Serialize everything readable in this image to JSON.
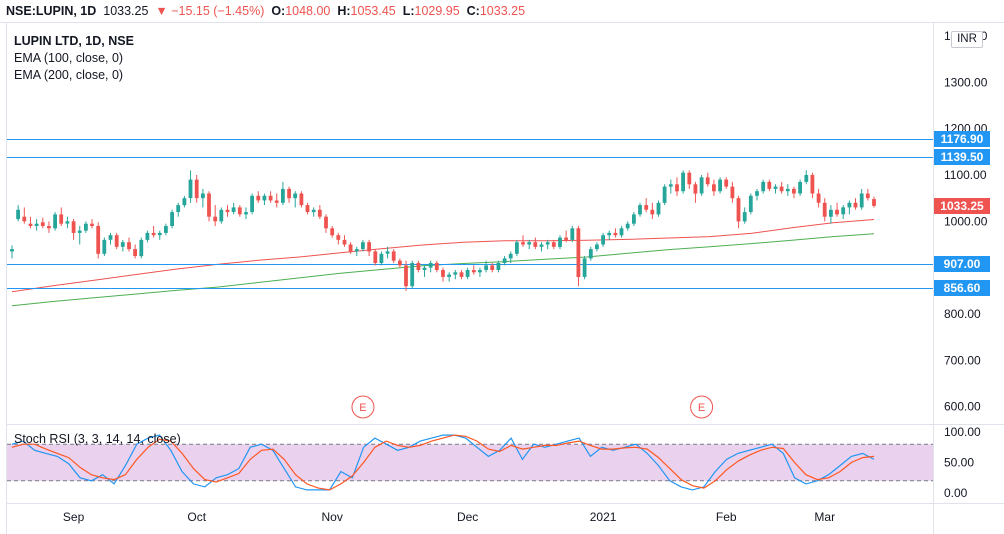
{
  "header": {
    "symbol": "NSE:LUPIN, 1D",
    "last": "1033.25",
    "change": "▼ −15.15 (−1.45%)",
    "open_label": "O:",
    "open": "1048.00",
    "high_label": "H:",
    "high": "1053.45",
    "low_label": "L:",
    "low": "1029.95",
    "close_label": "C:",
    "close": "1033.25"
  },
  "legend": {
    "title": "LUPIN LTD, 1D, NSE",
    "ema100": "EMA (100, close, 0)",
    "ema200": "EMA (200, close, 0)"
  },
  "currency_button": "INR",
  "colors": {
    "up": "#26a69a",
    "down": "#ef5350",
    "ema100": "#ef5350",
    "ema200": "#4caf50",
    "hline": "#2196f3",
    "stoch_k": "#2196f3",
    "stoch_d": "#ff5722",
    "stoch_band": "#e1bee7"
  },
  "chart_data": {
    "type": "candlestick",
    "price_axis": {
      "ticks": [
        "1400.00",
        "1300.00",
        "1200.00",
        "1100.00",
        "1000.00",
        "800.00",
        "700.00",
        "600.00"
      ],
      "ylim": [
        560,
        1405
      ]
    },
    "time_axis": [
      "Sep",
      "Oct",
      "Nov",
      "Dec",
      "2021",
      "Feb",
      "Mar"
    ],
    "horizontal_lines": [
      {
        "value": 1176.9,
        "label": "1176.90"
      },
      {
        "value": 1139.5,
        "label": "1139.50"
      },
      {
        "value": 907.0,
        "label": "907.00"
      },
      {
        "value": 856.6,
        "label": "856.60"
      }
    ],
    "last_price_label": "1033.25",
    "ohlc": [
      [
        935,
        948,
        920,
        940
      ],
      [
        1005,
        1035,
        1000,
        1025
      ],
      [
        1010,
        1030,
        995,
        1000
      ],
      [
        995,
        1010,
        985,
        990
      ],
      [
        990,
        1005,
        980,
        995
      ],
      [
        998,
        1008,
        985,
        990
      ],
      [
        990,
        1000,
        975,
        985
      ],
      [
        985,
        1020,
        980,
        1015
      ],
      [
        1015,
        1030,
        990,
        995
      ],
      [
        995,
        1010,
        985,
        1000
      ],
      [
        1000,
        1005,
        960,
        975
      ],
      [
        975,
        990,
        950,
        980
      ],
      [
        980,
        1000,
        975,
        995
      ],
      [
        995,
        1005,
        985,
        990
      ],
      [
        990,
        998,
        920,
        930
      ],
      [
        930,
        965,
        925,
        960
      ],
      [
        960,
        975,
        950,
        970
      ],
      [
        970,
        975,
        940,
        945
      ],
      [
        945,
        960,
        935,
        955
      ],
      [
        955,
        965,
        935,
        940
      ],
      [
        940,
        950,
        920,
        925
      ],
      [
        925,
        965,
        920,
        960
      ],
      [
        960,
        980,
        955,
        975
      ],
      [
        975,
        990,
        965,
        970
      ],
      [
        970,
        980,
        960,
        975
      ],
      [
        975,
        995,
        970,
        990
      ],
      [
        990,
        1025,
        985,
        1020
      ],
      [
        1020,
        1040,
        1010,
        1035
      ],
      [
        1035,
        1055,
        1030,
        1050
      ],
      [
        1050,
        1110,
        1040,
        1090
      ],
      [
        1090,
        1100,
        1040,
        1050
      ],
      [
        1050,
        1070,
        1030,
        1060
      ],
      [
        1060,
        1065,
        1000,
        1010
      ],
      [
        1010,
        1035,
        990,
        1000
      ],
      [
        1000,
        1030,
        995,
        1025
      ],
      [
        1025,
        1035,
        1010,
        1020
      ],
      [
        1020,
        1040,
        1015,
        1030
      ],
      [
        1030,
        1035,
        1010,
        1015
      ],
      [
        1015,
        1030,
        1005,
        1020
      ],
      [
        1020,
        1060,
        1015,
        1055
      ],
      [
        1055,
        1065,
        1040,
        1045
      ],
      [
        1045,
        1060,
        1035,
        1055
      ],
      [
        1055,
        1065,
        1040,
        1045
      ],
      [
        1045,
        1060,
        1030,
        1040
      ],
      [
        1040,
        1085,
        1035,
        1070
      ],
      [
        1070,
        1075,
        1040,
        1050
      ],
      [
        1050,
        1065,
        1030,
        1060
      ],
      [
        1060,
        1065,
        1030,
        1035
      ],
      [
        1035,
        1040,
        1015,
        1020
      ],
      [
        1020,
        1030,
        1010,
        1025
      ],
      [
        1025,
        1035,
        1005,
        1010
      ],
      [
        1010,
        1015,
        975,
        985
      ],
      [
        985,
        990,
        965,
        970
      ],
      [
        970,
        975,
        950,
        960
      ],
      [
        960,
        970,
        945,
        950
      ],
      [
        950,
        955,
        930,
        935
      ],
      [
        935,
        945,
        925,
        940
      ],
      [
        940,
        960,
        935,
        955
      ],
      [
        955,
        960,
        925,
        935
      ],
      [
        935,
        940,
        905,
        910
      ],
      [
        910,
        935,
        905,
        930
      ],
      [
        930,
        945,
        920,
        935
      ],
      [
        935,
        940,
        910,
        915
      ],
      [
        915,
        920,
        900,
        905
      ],
      [
        905,
        915,
        850,
        860
      ],
      [
        860,
        915,
        855,
        910
      ],
      [
        910,
        915,
        890,
        895
      ],
      [
        895,
        905,
        880,
        900
      ],
      [
        900,
        915,
        890,
        910
      ],
      [
        910,
        915,
        890,
        895
      ],
      [
        895,
        900,
        870,
        880
      ],
      [
        880,
        890,
        870,
        885
      ],
      [
        885,
        895,
        875,
        890
      ],
      [
        890,
        895,
        875,
        880
      ],
      [
        880,
        900,
        875,
        895
      ],
      [
        895,
        905,
        885,
        890
      ],
      [
        890,
        900,
        880,
        895
      ],
      [
        895,
        915,
        890,
        905
      ],
      [
        905,
        910,
        890,
        895
      ],
      [
        895,
        915,
        890,
        910
      ],
      [
        910,
        925,
        905,
        920
      ],
      [
        920,
        935,
        910,
        930
      ],
      [
        930,
        960,
        925,
        955
      ],
      [
        955,
        970,
        945,
        950
      ],
      [
        950,
        960,
        940,
        955
      ],
      [
        955,
        965,
        940,
        945
      ],
      [
        945,
        955,
        935,
        950
      ],
      [
        950,
        960,
        940,
        955
      ],
      [
        955,
        960,
        940,
        945
      ],
      [
        945,
        970,
        940,
        965
      ],
      [
        965,
        980,
        955,
        960
      ],
      [
        960,
        990,
        955,
        985
      ],
      [
        985,
        990,
        860,
        880
      ],
      [
        880,
        925,
        875,
        920
      ],
      [
        920,
        945,
        915,
        940
      ],
      [
        940,
        955,
        935,
        950
      ],
      [
        950,
        975,
        945,
        970
      ],
      [
        970,
        980,
        960,
        975
      ],
      [
        975,
        985,
        965,
        970
      ],
      [
        970,
        990,
        965,
        985
      ],
      [
        985,
        1000,
        980,
        995
      ],
      [
        995,
        1020,
        990,
        1015
      ],
      [
        1015,
        1040,
        1010,
        1035
      ],
      [
        1035,
        1050,
        1020,
        1025
      ],
      [
        1025,
        1040,
        1005,
        1015
      ],
      [
        1015,
        1045,
        1010,
        1040
      ],
      [
        1040,
        1080,
        1035,
        1075
      ],
      [
        1075,
        1090,
        1060,
        1080
      ],
      [
        1080,
        1095,
        1055,
        1065
      ],
      [
        1065,
        1110,
        1060,
        1105
      ],
      [
        1105,
        1110,
        1070,
        1080
      ],
      [
        1080,
        1085,
        1040,
        1060
      ],
      [
        1060,
        1100,
        1055,
        1095
      ],
      [
        1095,
        1105,
        1075,
        1080
      ],
      [
        1080,
        1090,
        1055,
        1065
      ],
      [
        1065,
        1095,
        1060,
        1090
      ],
      [
        1090,
        1095,
        1070,
        1075
      ],
      [
        1075,
        1085,
        1040,
        1050
      ],
      [
        1050,
        1055,
        985,
        1000
      ],
      [
        1000,
        1030,
        995,
        1020
      ],
      [
        1020,
        1060,
        1015,
        1055
      ],
      [
        1055,
        1070,
        1045,
        1065
      ],
      [
        1065,
        1090,
        1060,
        1085
      ],
      [
        1085,
        1090,
        1065,
        1070
      ],
      [
        1070,
        1080,
        1060,
        1075
      ],
      [
        1075,
        1085,
        1060,
        1065
      ],
      [
        1065,
        1080,
        1055,
        1070
      ],
      [
        1070,
        1075,
        1050,
        1060
      ],
      [
        1060,
        1090,
        1055,
        1085
      ],
      [
        1085,
        1110,
        1080,
        1100
      ],
      [
        1100,
        1105,
        1050,
        1060
      ],
      [
        1060,
        1070,
        1030,
        1040
      ],
      [
        1040,
        1050,
        1000,
        1010
      ],
      [
        1010,
        1035,
        995,
        1025
      ],
      [
        1025,
        1040,
        1010,
        1015
      ],
      [
        1015,
        1035,
        1005,
        1030
      ],
      [
        1030,
        1045,
        1015,
        1040
      ],
      [
        1040,
        1050,
        1025,
        1030
      ],
      [
        1030,
        1070,
        1025,
        1060
      ],
      [
        1060,
        1070,
        1045,
        1050
      ],
      [
        1048,
        1053.45,
        1029.95,
        1033.25
      ]
    ],
    "ema100": [
      848,
      861,
      873,
      885,
      897,
      907,
      916,
      923,
      932,
      941,
      949,
      955,
      958,
      958,
      959,
      961,
      964,
      967,
      974,
      986,
      997,
      1004
    ],
    "ema200": [
      818,
      827,
      835,
      843,
      851,
      858,
      868,
      878,
      888,
      896,
      904,
      909,
      913,
      918,
      923,
      931,
      939,
      945,
      952,
      959,
      967,
      973
    ],
    "stoch_rsi": {
      "label": "Stoch RSI (3, 3, 14, 14, close)",
      "ticks": [
        "100.00",
        "50.00",
        "0.00"
      ],
      "bands": [
        80,
        20
      ],
      "k": [
        80,
        85,
        70,
        65,
        60,
        48,
        25,
        20,
        30,
        15,
        45,
        80,
        90,
        95,
        70,
        35,
        15,
        10,
        25,
        30,
        40,
        75,
        80,
        70,
        40,
        10,
        5,
        5,
        5,
        35,
        25,
        75,
        90,
        80,
        70,
        75,
        85,
        90,
        95,
        95,
        90,
        75,
        60,
        70,
        90,
        55,
        80,
        75,
        80,
        85,
        90,
        60,
        75,
        70,
        75,
        80,
        65,
        45,
        20,
        10,
        5,
        10,
        35,
        55,
        65,
        70,
        75,
        80,
        65,
        25,
        15,
        20,
        30,
        45,
        60,
        65,
        55
      ],
      "d": [
        75,
        80,
        80,
        72,
        65,
        58,
        42,
        30,
        25,
        22,
        30,
        55,
        75,
        88,
        85,
        65,
        40,
        22,
        18,
        25,
        32,
        55,
        70,
        72,
        55,
        30,
        15,
        8,
        5,
        15,
        28,
        50,
        75,
        85,
        78,
        75,
        78,
        85,
        90,
        95,
        93,
        85,
        72,
        68,
        78,
        72,
        75,
        78,
        78,
        82,
        85,
        78,
        72,
        72,
        74,
        75,
        72,
        58,
        40,
        22,
        12,
        8,
        20,
        38,
        52,
        62,
        70,
        75,
        73,
        50,
        30,
        22,
        25,
        35,
        50,
        58,
        60
      ]
    },
    "earnings_markers": [
      "E",
      "E"
    ]
  }
}
